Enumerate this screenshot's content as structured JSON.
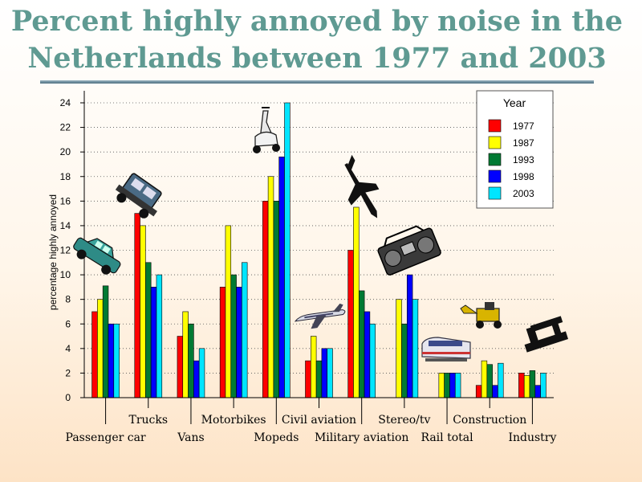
{
  "colors": {
    "title": "#5f9a92",
    "1977": "#ff0000",
    "1987": "#ffff00",
    "1993": "#007a33",
    "1998": "#0000ff",
    "2003": "#00e5ff"
  },
  "icons": [
    "car-icon",
    "truck-icon",
    "scooter-icon",
    "airliner-icon",
    "fighter-jet-icon",
    "boombox-icon",
    "train-icon",
    "loader-icon",
    "industrial-machine-icon"
  ],
  "chart_data": {
    "type": "bar",
    "title": "Percent highly annoyed by noise in the Netherlands between 1977 and 2003",
    "xlabel": "",
    "ylabel": "percentage highly annoyed",
    "ylim": [
      0,
      24
    ],
    "yticks": [
      0,
      2,
      4,
      6,
      8,
      10,
      12,
      14,
      16,
      18,
      20,
      22,
      24
    ],
    "grid": "horizontal dotted",
    "legend_title": "Year",
    "legend_position": "top-right",
    "categories": [
      "Passenger car",
      "Trucks",
      "Vans",
      "Motorbikes",
      "Mopeds",
      "Civil aviation",
      "Military aviation",
      "Stereo/tv",
      "Rail total",
      "Construction",
      "Industry"
    ],
    "series": [
      {
        "name": "1977",
        "color": "#ff0000",
        "values": [
          7,
          15,
          5,
          9,
          16,
          3,
          12,
          null,
          null,
          1,
          2
        ]
      },
      {
        "name": "1987",
        "color": "#ffff00",
        "values": [
          8,
          14,
          7,
          14,
          18,
          5,
          15.5,
          8,
          2,
          3,
          1.8
        ]
      },
      {
        "name": "1993",
        "color": "#007a33",
        "values": [
          9.1,
          11,
          6,
          10,
          16,
          3,
          8.7,
          6,
          2,
          2.7,
          2.2
        ]
      },
      {
        "name": "1998",
        "color": "#0000ff",
        "values": [
          6,
          9,
          3,
          9,
          19.6,
          4,
          7,
          10,
          2,
          1,
          1
        ]
      },
      {
        "name": "2003",
        "color": "#00e5ff",
        "values": [
          6,
          10,
          4,
          11,
          24,
          4,
          6,
          8,
          2,
          2.8,
          2
        ]
      }
    ]
  }
}
